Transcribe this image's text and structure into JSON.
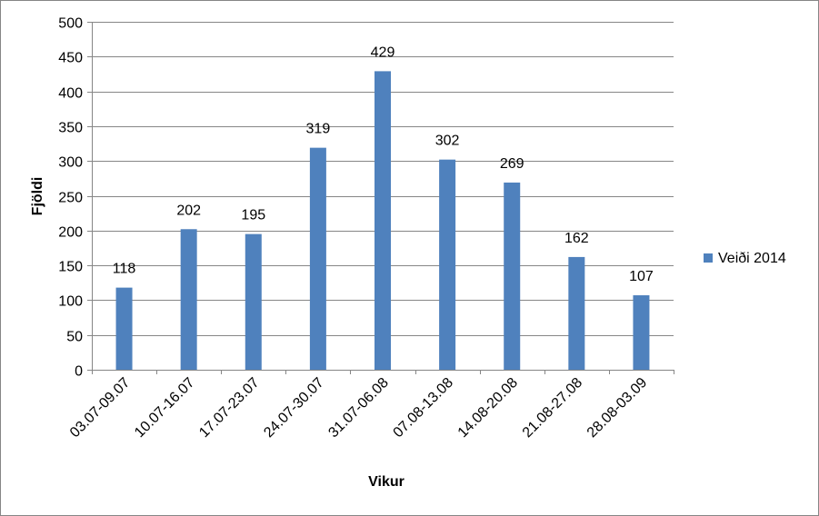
{
  "chart_data": {
    "type": "bar",
    "categories": [
      "03.07-09.07",
      "10.07-16.07",
      "17.07-23.07",
      "24.07-30.07",
      "31.07-06.08",
      "07.08-13.08",
      "14.08-20.08",
      "21.08-27.08",
      "28.08-03.09"
    ],
    "series": [
      {
        "name": "Veiði 2014",
        "values": [
          118,
          202,
          195,
          319,
          429,
          302,
          269,
          162,
          107
        ],
        "color": "#4F81BD"
      }
    ],
    "xlabel": "Vikur",
    "ylabel": "Fjöldi",
    "ylim": [
      0,
      500
    ],
    "yticks": [
      0,
      50,
      100,
      150,
      200,
      250,
      300,
      350,
      400,
      450,
      500
    ],
    "grid": true,
    "legend": "right",
    "data_labels": true
  }
}
